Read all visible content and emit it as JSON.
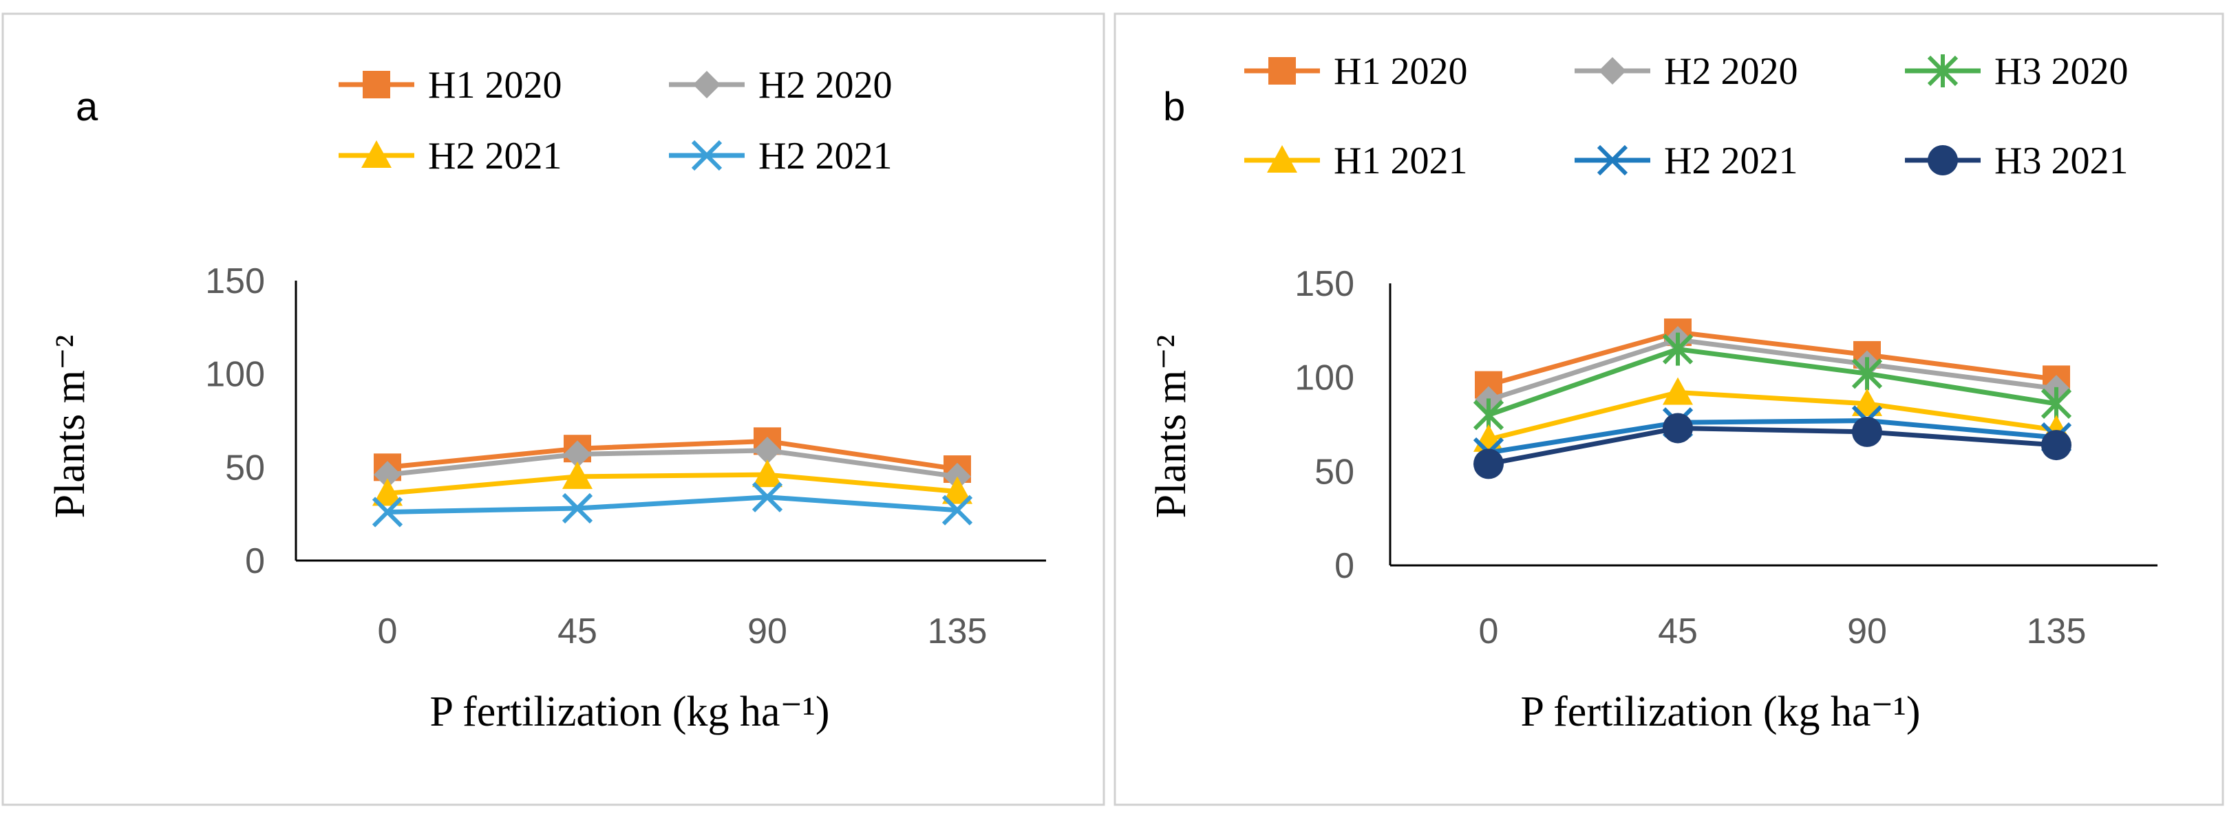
{
  "chart_data": [
    {
      "panel": "a",
      "type": "line",
      "title": "",
      "xlabel": "P fertilization (kg ha⁻¹)",
      "ylabel": "Plants m⁻²",
      "categories": [
        "0",
        "45",
        "90",
        "135"
      ],
      "yticks": [
        "0",
        "50",
        "100",
        "150"
      ],
      "ylim": [
        0,
        150
      ],
      "legend_position": "top",
      "series": [
        {
          "name": "H1 2020",
          "color": "#ED7D31",
          "marker": "square",
          "values": [
            50,
            60,
            64,
            49
          ]
        },
        {
          "name": "H2 2020",
          "color": "#A5A5A5",
          "marker": "diamond",
          "values": [
            46,
            57,
            59,
            45
          ]
        },
        {
          "name": "H2 2021",
          "color": "#FFC000",
          "marker": "triangle",
          "values": [
            36,
            45,
            46,
            37
          ]
        },
        {
          "name": "H2 2021",
          "color": "#3B9FD8",
          "marker": "x",
          "values": [
            26,
            28,
            34,
            27
          ]
        }
      ]
    },
    {
      "panel": "b",
      "type": "line",
      "title": "",
      "xlabel": "P fertilization (kg ha⁻¹)",
      "ylabel": "Plants m⁻²",
      "categories": [
        "0",
        "45",
        "90",
        "135"
      ],
      "yticks": [
        "0",
        "50",
        "100",
        "150"
      ],
      "ylim": [
        0,
        150
      ],
      "legend_position": "top",
      "series": [
        {
          "name": "H1 2020",
          "color": "#ED7D31",
          "marker": "square",
          "values": [
            96,
            124,
            112,
            99
          ]
        },
        {
          "name": "H2 2020",
          "color": "#A5A5A5",
          "marker": "diamond",
          "values": [
            88,
            120,
            107,
            94
          ]
        },
        {
          "name": "H3 2020",
          "color": "#4CAF50",
          "marker": "star",
          "values": [
            80,
            115,
            102,
            86
          ]
        },
        {
          "name": "H1 2021",
          "color": "#FFC000",
          "marker": "triangle",
          "values": [
            67,
            92,
            86,
            72
          ]
        },
        {
          "name": "H2 2021",
          "color": "#1F7BBF",
          "marker": "x",
          "values": [
            60,
            76,
            77,
            68
          ]
        },
        {
          "name": "H3 2021",
          "color": "#1F3E74",
          "marker": "circle",
          "values": [
            54,
            73,
            71,
            64
          ]
        }
      ]
    }
  ]
}
